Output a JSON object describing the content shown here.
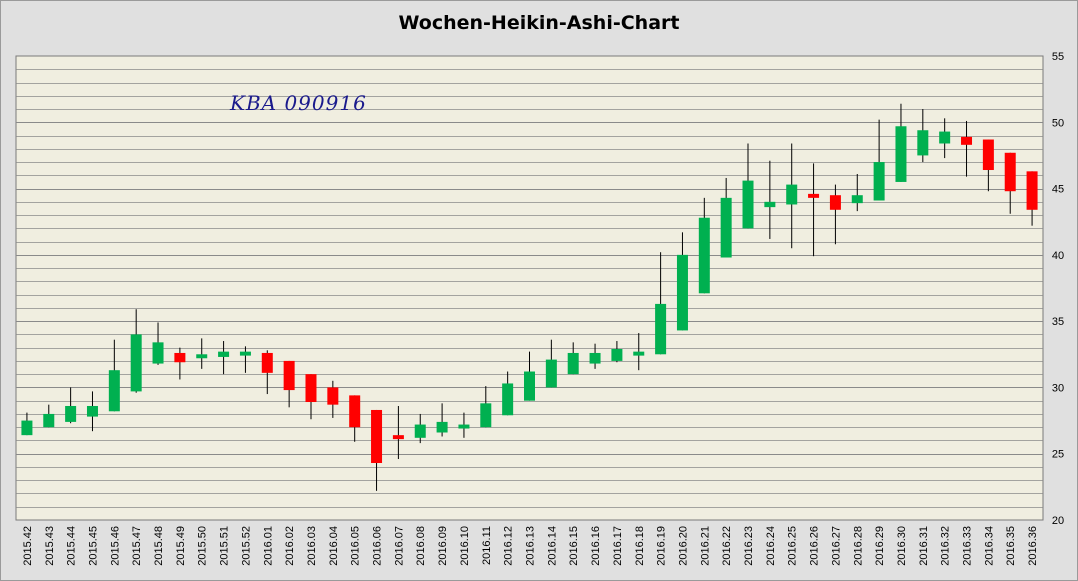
{
  "chart_data": {
    "type": "candlestick",
    "title": "Wochen-Heikin-Ashi-Chart",
    "annotation": "KBA 090916",
    "ylim": [
      20,
      55
    ],
    "yticks": [
      20,
      25,
      30,
      35,
      40,
      45,
      50,
      55
    ],
    "y_axis_position": "right",
    "grid": true,
    "colors": {
      "up": "#00b050",
      "down": "#ff0000",
      "wick": "#000000",
      "plot_background": "#f0eee0",
      "gridline": "#8a8a8a",
      "frame": "#e0e0e0",
      "annotation": "#1a1a8c"
    },
    "candles": [
      {
        "label": "2015.42",
        "open": 26.4,
        "close": 27.5,
        "high": 28.1,
        "low": 26.4
      },
      {
        "label": "2015.43",
        "open": 27.0,
        "close": 28.0,
        "high": 28.7,
        "low": 27.0
      },
      {
        "label": "2015.44",
        "open": 27.4,
        "close": 28.6,
        "high": 30.0,
        "low": 27.3
      },
      {
        "label": "2015.45",
        "open": 27.8,
        "close": 28.6,
        "high": 29.7,
        "low": 26.7
      },
      {
        "label": "2015.46",
        "open": 28.2,
        "close": 31.3,
        "high": 33.6,
        "low": 28.2
      },
      {
        "label": "2015.47",
        "open": 29.7,
        "close": 34.0,
        "high": 35.9,
        "low": 29.6
      },
      {
        "label": "2015.48",
        "open": 31.8,
        "close": 33.4,
        "high": 34.9,
        "low": 31.7
      },
      {
        "label": "2015.49",
        "open": 32.6,
        "close": 31.9,
        "high": 33.0,
        "low": 30.6
      },
      {
        "label": "2015.50",
        "open": 32.2,
        "close": 32.5,
        "high": 33.7,
        "low": 31.4
      },
      {
        "label": "2015.51",
        "open": 32.3,
        "close": 32.7,
        "high": 33.5,
        "low": 31.0
      },
      {
        "label": "2015.52",
        "open": 32.4,
        "close": 32.7,
        "high": 33.1,
        "low": 31.1
      },
      {
        "label": "2016.01",
        "open": 32.6,
        "close": 31.1,
        "high": 32.8,
        "low": 29.5
      },
      {
        "label": "2016.02",
        "open": 32.0,
        "close": 29.8,
        "high": 32.0,
        "low": 28.5
      },
      {
        "label": "2016.03",
        "open": 31.0,
        "close": 28.9,
        "high": 31.0,
        "low": 27.6
      },
      {
        "label": "2016.04",
        "open": 30.0,
        "close": 28.7,
        "high": 30.5,
        "low": 27.7
      },
      {
        "label": "2016.05",
        "open": 29.4,
        "close": 27.0,
        "high": 29.4,
        "low": 25.9
      },
      {
        "label": "2016.06",
        "open": 28.3,
        "close": 24.3,
        "high": 28.3,
        "low": 22.2
      },
      {
        "label": "2016.07",
        "open": 26.4,
        "close": 26.1,
        "high": 28.6,
        "low": 24.6
      },
      {
        "label": "2016.08",
        "open": 26.2,
        "close": 27.2,
        "high": 28.0,
        "low": 25.8
      },
      {
        "label": "2016.09",
        "open": 26.6,
        "close": 27.4,
        "high": 28.8,
        "low": 26.3
      },
      {
        "label": "2016.10",
        "open": 26.9,
        "close": 27.2,
        "high": 28.1,
        "low": 26.2
      },
      {
        "label": "2016.11",
        "open": 27.0,
        "close": 28.8,
        "high": 30.1,
        "low": 27.0
      },
      {
        "label": "2016.12",
        "open": 27.9,
        "close": 30.3,
        "high": 31.2,
        "low": 27.9
      },
      {
        "label": "2016.13",
        "open": 29.0,
        "close": 31.2,
        "high": 32.7,
        "low": 29.0
      },
      {
        "label": "2016.14",
        "open": 30.0,
        "close": 32.1,
        "high": 33.6,
        "low": 30.0
      },
      {
        "label": "2016.15",
        "open": 31.0,
        "close": 32.6,
        "high": 33.4,
        "low": 31.0
      },
      {
        "label": "2016.16",
        "open": 31.8,
        "close": 32.6,
        "high": 33.3,
        "low": 31.4
      },
      {
        "label": "2016.17",
        "open": 32.0,
        "close": 32.9,
        "high": 33.5,
        "low": 31.9
      },
      {
        "label": "2016.18",
        "open": 32.4,
        "close": 32.7,
        "high": 34.1,
        "low": 31.3
      },
      {
        "label": "2016.19",
        "open": 32.5,
        "close": 36.3,
        "high": 40.2,
        "low": 32.5
      },
      {
        "label": "2016.20",
        "open": 34.3,
        "close": 40.0,
        "high": 41.7,
        "low": 34.3
      },
      {
        "label": "2016.21",
        "open": 37.1,
        "close": 42.8,
        "high": 44.3,
        "low": 37.1
      },
      {
        "label": "2016.22",
        "open": 39.8,
        "close": 44.3,
        "high": 45.8,
        "low": 39.8
      },
      {
        "label": "2016.23",
        "open": 42.0,
        "close": 45.6,
        "high": 48.4,
        "low": 42.0
      },
      {
        "label": "2016.24",
        "open": 43.6,
        "close": 44.0,
        "high": 47.1,
        "low": 41.2
      },
      {
        "label": "2016.25",
        "open": 43.8,
        "close": 45.3,
        "high": 48.4,
        "low": 40.5
      },
      {
        "label": "2016.26",
        "open": 44.6,
        "close": 44.3,
        "high": 46.9,
        "low": 39.9
      },
      {
        "label": "2016.27",
        "open": 44.5,
        "close": 43.4,
        "high": 45.3,
        "low": 40.8
      },
      {
        "label": "2016.28",
        "open": 43.9,
        "close": 44.5,
        "high": 46.1,
        "low": 43.3
      },
      {
        "label": "2016.29",
        "open": 44.1,
        "close": 47.0,
        "high": 50.2,
        "low": 44.1
      },
      {
        "label": "2016.30",
        "open": 45.5,
        "close": 49.7,
        "high": 51.4,
        "low": 45.5
      },
      {
        "label": "2016.31",
        "open": 47.5,
        "close": 49.4,
        "high": 51.0,
        "low": 47.0
      },
      {
        "label": "2016.32",
        "open": 48.4,
        "close": 49.3,
        "high": 50.3,
        "low": 47.3
      },
      {
        "label": "2016.33",
        "open": 48.9,
        "close": 48.3,
        "high": 50.1,
        "low": 45.9
      },
      {
        "label": "2016.34",
        "open": 48.7,
        "close": 46.4,
        "high": 48.7,
        "low": 44.8
      },
      {
        "label": "2016.35",
        "open": 47.7,
        "close": 44.8,
        "high": 47.7,
        "low": 43.1
      },
      {
        "label": "2016.36",
        "open": 46.3,
        "close": 43.4,
        "high": 46.3,
        "low": 42.2
      }
    ]
  }
}
